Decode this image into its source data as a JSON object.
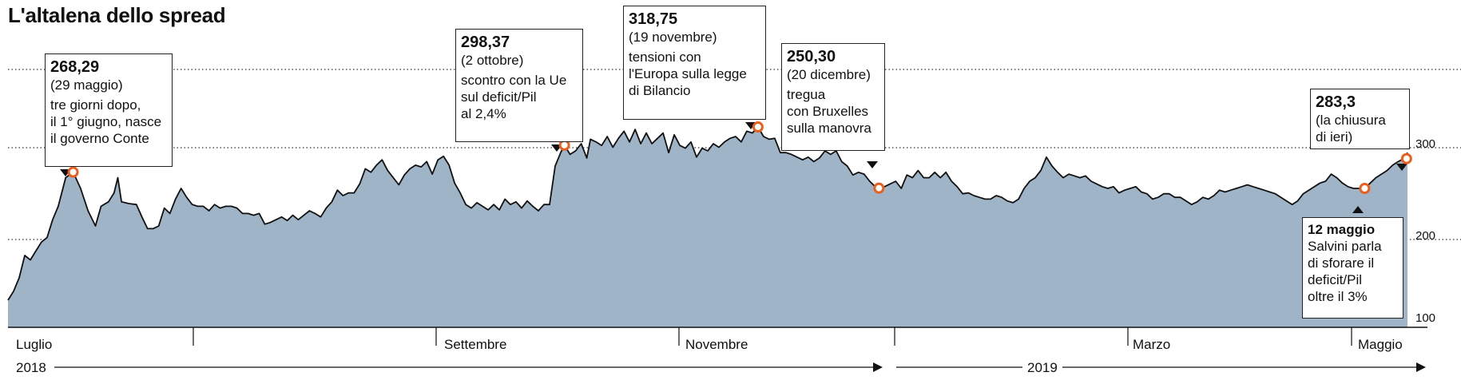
{
  "chart_data": {
    "type": "area",
    "title": "L'altalena dello spread",
    "series_color": "#9fb4c6",
    "line_color": "#111111",
    "marker_color": "#e8601c",
    "ylim": [
      100,
      330
    ],
    "yticks": [
      "300",
      "200",
      "100"
    ],
    "ytick_values": [
      300,
      200,
      100
    ],
    "grid": "dotted horizontal",
    "x_labels": [
      "Luglio",
      "Settembre",
      "Novembre",
      "Marzo",
      "Maggio"
    ],
    "year_labels": [
      "2018",
      "2019"
    ],
    "points": [
      [
        0,
        125
      ],
      [
        6,
        135
      ],
      [
        12,
        150
      ],
      [
        18,
        175
      ],
      [
        24,
        170
      ],
      [
        30,
        180
      ],
      [
        36,
        190
      ],
      [
        42,
        195
      ],
      [
        48,
        215
      ],
      [
        54,
        230
      ],
      [
        62,
        262
      ],
      [
        70,
        268.29
      ],
      [
        78,
        250
      ],
      [
        86,
        225
      ],
      [
        94,
        208
      ],
      [
        100,
        230
      ],
      [
        108,
        235
      ],
      [
        114,
        245
      ],
      [
        118,
        262
      ],
      [
        122,
        235
      ],
      [
        130,
        233
      ],
      [
        138,
        232
      ],
      [
        144,
        218
      ],
      [
        150,
        205
      ],
      [
        156,
        205
      ],
      [
        162,
        208
      ],
      [
        168,
        228
      ],
      [
        174,
        222
      ],
      [
        180,
        238
      ],
      [
        186,
        250
      ],
      [
        192,
        240
      ],
      [
        198,
        232
      ],
      [
        204,
        230
      ],
      [
        210,
        230
      ],
      [
        216,
        225
      ],
      [
        222,
        232
      ],
      [
        228,
        228
      ],
      [
        234,
        230
      ],
      [
        240,
        230
      ],
      [
        246,
        228
      ],
      [
        252,
        222
      ],
      [
        258,
        222
      ],
      [
        264,
        220
      ],
      [
        270,
        222
      ],
      [
        276,
        210
      ],
      [
        282,
        212
      ],
      [
        288,
        215
      ],
      [
        294,
        218
      ],
      [
        300,
        214
      ],
      [
        306,
        220
      ],
      [
        312,
        215
      ],
      [
        318,
        220
      ],
      [
        324,
        225
      ],
      [
        330,
        222
      ],
      [
        336,
        218
      ],
      [
        342,
        228
      ],
      [
        348,
        235
      ],
      [
        354,
        248
      ],
      [
        360,
        242
      ],
      [
        366,
        245
      ],
      [
        372,
        245
      ],
      [
        378,
        255
      ],
      [
        384,
        272
      ],
      [
        390,
        268
      ],
      [
        396,
        276
      ],
      [
        402,
        282
      ],
      [
        408,
        270
      ],
      [
        414,
        262
      ],
      [
        420,
        254
      ],
      [
        426,
        265
      ],
      [
        432,
        272
      ],
      [
        438,
        276
      ],
      [
        444,
        274
      ],
      [
        450,
        280
      ],
      [
        456,
        266
      ],
      [
        462,
        282
      ],
      [
        468,
        286
      ],
      [
        474,
        276
      ],
      [
        480,
        256
      ],
      [
        486,
        245
      ],
      [
        492,
        232
      ],
      [
        498,
        228
      ],
      [
        504,
        234
      ],
      [
        510,
        230
      ],
      [
        516,
        226
      ],
      [
        522,
        232
      ],
      [
        528,
        226
      ],
      [
        534,
        238
      ],
      [
        540,
        232
      ],
      [
        546,
        235
      ],
      [
        552,
        228
      ],
      [
        558,
        236
      ],
      [
        564,
        230
      ],
      [
        570,
        225
      ],
      [
        576,
        232
      ],
      [
        582,
        232
      ],
      [
        588,
        275
      ],
      [
        594,
        290
      ],
      [
        598,
        298.37
      ],
      [
        604,
        288
      ],
      [
        610,
        292
      ],
      [
        616,
        300
      ],
      [
        622,
        284
      ],
      [
        626,
        305
      ],
      [
        632,
        302
      ],
      [
        638,
        298
      ],
      [
        644,
        308
      ],
      [
        650,
        296
      ],
      [
        656,
        306
      ],
      [
        662,
        314
      ],
      [
        668,
        302
      ],
      [
        674,
        316
      ],
      [
        680,
        300
      ],
      [
        686,
        312
      ],
      [
        692,
        300
      ],
      [
        698,
        306
      ],
      [
        704,
        312
      ],
      [
        710,
        290
      ],
      [
        716,
        310
      ],
      [
        722,
        298
      ],
      [
        728,
        295
      ],
      [
        734,
        302
      ],
      [
        740,
        285
      ],
      [
        746,
        295
      ],
      [
        752,
        292
      ],
      [
        758,
        300
      ],
      [
        764,
        296
      ],
      [
        770,
        302
      ],
      [
        776,
        306
      ],
      [
        782,
        308
      ],
      [
        788,
        302
      ],
      [
        794,
        314
      ],
      [
        800,
        312
      ],
      [
        806,
        318.75
      ],
      [
        812,
        308
      ],
      [
        818,
        305
      ],
      [
        824,
        306
      ],
      [
        830,
        290
      ],
      [
        836,
        290
      ],
      [
        842,
        288
      ],
      [
        848,
        285
      ],
      [
        854,
        282
      ],
      [
        860,
        285
      ],
      [
        866,
        280
      ],
      [
        872,
        284
      ],
      [
        878,
        292
      ],
      [
        884,
        288
      ],
      [
        890,
        292
      ],
      [
        896,
        280
      ],
      [
        902,
        275
      ],
      [
        908,
        265
      ],
      [
        914,
        268
      ],
      [
        920,
        266
      ],
      [
        926,
        258
      ],
      [
        932,
        252
      ],
      [
        936,
        250.3
      ],
      [
        942,
        252
      ],
      [
        948,
        255
      ],
      [
        954,
        258
      ],
      [
        960,
        250
      ],
      [
        966,
        265
      ],
      [
        972,
        262
      ],
      [
        978,
        270
      ],
      [
        984,
        262
      ],
      [
        990,
        262
      ],
      [
        996,
        268
      ],
      [
        1002,
        262
      ],
      [
        1008,
        268
      ],
      [
        1014,
        258
      ],
      [
        1020,
        252
      ],
      [
        1026,
        244
      ],
      [
        1032,
        245
      ],
      [
        1038,
        242
      ],
      [
        1044,
        240
      ],
      [
        1050,
        238
      ],
      [
        1056,
        238
      ],
      [
        1062,
        242
      ],
      [
        1068,
        240
      ],
      [
        1074,
        236
      ],
      [
        1080,
        234
      ],
      [
        1086,
        238
      ],
      [
        1092,
        250
      ],
      [
        1098,
        258
      ],
      [
        1104,
        262
      ],
      [
        1110,
        270
      ],
      [
        1116,
        285
      ],
      [
        1122,
        275
      ],
      [
        1128,
        268
      ],
      [
        1134,
        262
      ],
      [
        1140,
        266
      ],
      [
        1146,
        264
      ],
      [
        1152,
        262
      ],
      [
        1158,
        264
      ],
      [
        1164,
        258
      ],
      [
        1170,
        255
      ],
      [
        1176,
        252
      ],
      [
        1182,
        250
      ],
      [
        1188,
        252
      ],
      [
        1194,
        245
      ],
      [
        1200,
        248
      ],
      [
        1206,
        250
      ],
      [
        1212,
        252
      ],
      [
        1218,
        246
      ],
      [
        1224,
        244
      ],
      [
        1230,
        238
      ],
      [
        1236,
        240
      ],
      [
        1242,
        244
      ],
      [
        1248,
        244
      ],
      [
        1254,
        240
      ],
      [
        1260,
        240
      ],
      [
        1266,
        236
      ],
      [
        1272,
        232
      ],
      [
        1278,
        235
      ],
      [
        1284,
        240
      ],
      [
        1290,
        238
      ],
      [
        1296,
        242
      ],
      [
        1302,
        248
      ],
      [
        1308,
        246
      ],
      [
        1314,
        248
      ],
      [
        1320,
        250
      ],
      [
        1326,
        252
      ],
      [
        1332,
        254
      ],
      [
        1338,
        252
      ],
      [
        1344,
        250
      ],
      [
        1350,
        248
      ],
      [
        1356,
        246
      ],
      [
        1362,
        244
      ],
      [
        1368,
        240
      ],
      [
        1374,
        236
      ],
      [
        1380,
        232
      ],
      [
        1386,
        236
      ],
      [
        1392,
        244
      ],
      [
        1398,
        248
      ],
      [
        1404,
        252
      ],
      [
        1410,
        256
      ],
      [
        1416,
        258
      ],
      [
        1422,
        266
      ],
      [
        1428,
        262
      ],
      [
        1434,
        256
      ],
      [
        1440,
        252
      ],
      [
        1446,
        250
      ],
      [
        1452,
        250
      ],
      [
        1458,
        250
      ],
      [
        1464,
        256
      ],
      [
        1470,
        262
      ],
      [
        1476,
        266
      ],
      [
        1482,
        270
      ],
      [
        1488,
        276
      ],
      [
        1494,
        280
      ],
      [
        1500,
        283.3
      ],
      [
        1504,
        290
      ]
    ],
    "x_domain": [
      0,
      1504
    ],
    "markers": [
      {
        "x": 70,
        "y": 268.29
      },
      {
        "x": 598,
        "y": 298.37
      },
      {
        "x": 806,
        "y": 318.75
      },
      {
        "x": 936,
        "y": 250.3
      },
      {
        "x": 1458,
        "y": 250
      },
      {
        "x": 1503,
        "y": 283.3
      }
    ],
    "annotations": [
      {
        "value": "268,29",
        "date": "(29 maggio)",
        "text": "tre giorni dopo,\nil 1° giugno, nasce\nil governo Conte"
      },
      {
        "value": "298,37",
        "date": "(2 ottobre)",
        "text": "scontro con la Ue\nsul deficit/Pil\nal 2,4%"
      },
      {
        "value": "318,75",
        "date": "(19 novembre)",
        "text": "tensioni con\nl'Europa sulla legge\ndi Bilancio"
      },
      {
        "value": "250,30",
        "date": "(20 dicembre)",
        "text": "tregua\ncon Bruxelles\nsulla manovra"
      },
      {
        "value": "283,3",
        "date": "(la chiusura\ndi ieri)",
        "text": ""
      },
      {
        "value": "",
        "date": "12 maggio",
        "text": "Salvini parla\ndi sforare il\ndeficit/Pil\noltre il 3%"
      }
    ]
  }
}
